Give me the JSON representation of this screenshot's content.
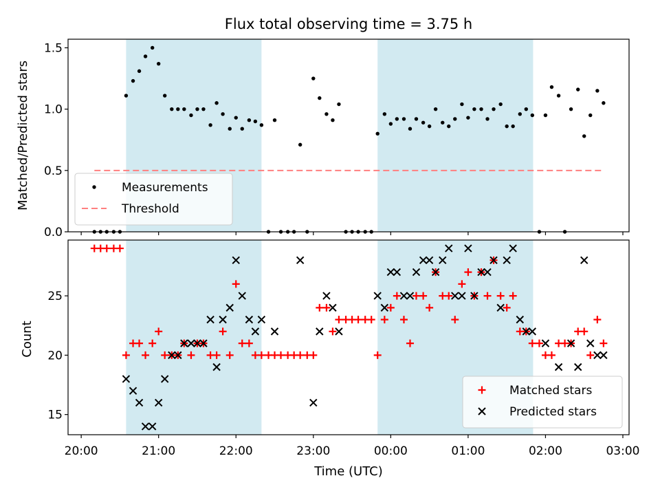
{
  "chart_data": {
    "type": "scatter",
    "title": "Flux total observing time = 3.75 h",
    "xlabel": "Time (UTC)",
    "x_unit": "hours since 20:00 UTC",
    "x_ticks": [
      0,
      1,
      2,
      3,
      4,
      5,
      6,
      7
    ],
    "x_tick_labels": [
      "20:00",
      "21:00",
      "22:00",
      "23:00",
      "00:00",
      "01:00",
      "02:00",
      "03:00"
    ],
    "xlim": [
      -0.17,
      7.08
    ],
    "shaded_spans": [
      [
        0.58,
        2.33
      ],
      [
        3.83,
        5.84
      ]
    ],
    "shade_color": "#add8e6",
    "panels": [
      {
        "ylabel": "Matched/Predicted stars",
        "ylim": [
          0.0,
          1.57
        ],
        "y_ticks": [
          0.0,
          0.5,
          1.0,
          1.5
        ],
        "y_tick_labels": [
          "0.0",
          "0.5",
          "1.0",
          "1.5"
        ],
        "legend_position": "lower-left",
        "series": [
          {
            "name": "Measurements",
            "kind": "dot",
            "color": "#000000",
            "points": [
              [
                0.17,
                0
              ],
              [
                0.25,
                0
              ],
              [
                0.33,
                0
              ],
              [
                0.42,
                0
              ],
              [
                0.5,
                0
              ],
              [
                0.58,
                1.11
              ],
              [
                0.67,
                1.23
              ],
              [
                0.75,
                1.31
              ],
              [
                0.83,
                1.43
              ],
              [
                0.92,
                1.5
              ],
              [
                1.0,
                1.37
              ],
              [
                1.08,
                1.11
              ],
              [
                1.17,
                1.0
              ],
              [
                1.25,
                1.0
              ],
              [
                1.33,
                1.0
              ],
              [
                1.42,
                0.95
              ],
              [
                1.5,
                1.0
              ],
              [
                1.58,
                1.0
              ],
              [
                1.67,
                0.87
              ],
              [
                1.75,
                1.05
              ],
              [
                1.83,
                0.96
              ],
              [
                1.92,
                0.84
              ],
              [
                2.0,
                0.93
              ],
              [
                2.08,
                0.84
              ],
              [
                2.17,
                0.91
              ],
              [
                2.25,
                0.9
              ],
              [
                2.33,
                0.87
              ],
              [
                2.42,
                0
              ],
              [
                2.5,
                0.91
              ],
              [
                2.58,
                0
              ],
              [
                2.67,
                0
              ],
              [
                2.75,
                0
              ],
              [
                2.83,
                0.71
              ],
              [
                2.92,
                0
              ],
              [
                3.0,
                1.25
              ],
              [
                3.08,
                1.09
              ],
              [
                3.17,
                0.96
              ],
              [
                3.25,
                0.91
              ],
              [
                3.33,
                1.04
              ],
              [
                3.42,
                0
              ],
              [
                3.5,
                0
              ],
              [
                3.58,
                0
              ],
              [
                3.67,
                0
              ],
              [
                3.75,
                0
              ],
              [
                3.83,
                0.8
              ],
              [
                3.92,
                0.96
              ],
              [
                4.0,
                0.88
              ],
              [
                4.08,
                0.92
              ],
              [
                4.17,
                0.92
              ],
              [
                4.25,
                0.84
              ],
              [
                4.33,
                0.92
              ],
              [
                4.42,
                0.89
              ],
              [
                4.5,
                0.86
              ],
              [
                4.58,
                1.0
              ],
              [
                4.67,
                0.89
              ],
              [
                4.75,
                0.86
              ],
              [
                4.83,
                0.92
              ],
              [
                4.92,
                1.04
              ],
              [
                5.0,
                0.93
              ],
              [
                5.08,
                1.0
              ],
              [
                5.17,
                1.0
              ],
              [
                5.25,
                0.92
              ],
              [
                5.33,
                1.0
              ],
              [
                5.42,
                1.04
              ],
              [
                5.5,
                0.86
              ],
              [
                5.58,
                0.86
              ],
              [
                5.67,
                0.96
              ],
              [
                5.75,
                1.0
              ],
              [
                5.83,
                0.95
              ],
              [
                5.92,
                0
              ],
              [
                6.0,
                0.95
              ],
              [
                6.08,
                1.18
              ],
              [
                6.17,
                1.11
              ],
              [
                6.25,
                0
              ],
              [
                6.33,
                1.0
              ],
              [
                6.42,
                1.16
              ],
              [
                6.5,
                0.78
              ],
              [
                6.58,
                0.95
              ],
              [
                6.67,
                1.15
              ],
              [
                6.75,
                1.05
              ]
            ]
          },
          {
            "name": "Threshold",
            "kind": "dashed-line",
            "color": "#ff7f7f",
            "points": [
              [
                0.17,
                0.5
              ],
              [
                6.75,
                0.5
              ]
            ]
          }
        ]
      },
      {
        "ylabel": "Count",
        "ylim": [
          13.3,
          29.7
        ],
        "y_ticks": [
          15,
          20,
          25
        ],
        "y_tick_labels": [
          "15",
          "20",
          "25"
        ],
        "legend_position": "lower-right",
        "series": [
          {
            "name": "Matched stars",
            "kind": "plus",
            "color": "#ff0000",
            "points": [
              [
                0.17,
                29
              ],
              [
                0.25,
                29
              ],
              [
                0.33,
                29
              ],
              [
                0.42,
                29
              ],
              [
                0.5,
                29
              ],
              [
                0.58,
                20
              ],
              [
                0.67,
                21
              ],
              [
                0.75,
                21
              ],
              [
                0.83,
                20
              ],
              [
                0.92,
                21
              ],
              [
                1.0,
                22
              ],
              [
                1.08,
                20
              ],
              [
                1.17,
                20
              ],
              [
                1.25,
                20
              ],
              [
                1.33,
                21
              ],
              [
                1.42,
                20
              ],
              [
                1.5,
                21
              ],
              [
                1.58,
                21
              ],
              [
                1.67,
                20
              ],
              [
                1.75,
                20
              ],
              [
                1.83,
                22
              ],
              [
                1.92,
                20
              ],
              [
                2.0,
                26
              ],
              [
                2.08,
                21
              ],
              [
                2.17,
                21
              ],
              [
                2.25,
                20
              ],
              [
                2.33,
                20
              ],
              [
                2.42,
                20
              ],
              [
                2.5,
                20
              ],
              [
                2.58,
                20
              ],
              [
                2.67,
                20
              ],
              [
                2.75,
                20
              ],
              [
                2.83,
                20
              ],
              [
                2.92,
                20
              ],
              [
                3.0,
                20
              ],
              [
                3.08,
                24
              ],
              [
                3.17,
                24
              ],
              [
                3.25,
                22
              ],
              [
                3.33,
                23
              ],
              [
                3.42,
                23
              ],
              [
                3.5,
                23
              ],
              [
                3.58,
                23
              ],
              [
                3.67,
                23
              ],
              [
                3.75,
                23
              ],
              [
                3.83,
                20
              ],
              [
                3.92,
                23
              ],
              [
                4.0,
                24
              ],
              [
                4.08,
                25
              ],
              [
                4.17,
                23
              ],
              [
                4.25,
                21
              ],
              [
                4.33,
                25
              ],
              [
                4.42,
                25
              ],
              [
                4.5,
                24
              ],
              [
                4.58,
                27
              ],
              [
                4.67,
                25
              ],
              [
                4.75,
                25
              ],
              [
                4.83,
                23
              ],
              [
                4.92,
                26
              ],
              [
                5.0,
                27
              ],
              [
                5.08,
                25
              ],
              [
                5.17,
                27
              ],
              [
                5.25,
                25
              ],
              [
                5.33,
                28
              ],
              [
                5.42,
                25
              ],
              [
                5.5,
                24
              ],
              [
                5.58,
                25
              ],
              [
                5.67,
                22
              ],
              [
                5.75,
                22
              ],
              [
                5.83,
                21
              ],
              [
                5.92,
                21
              ],
              [
                6.0,
                20
              ],
              [
                6.08,
                20
              ],
              [
                6.17,
                21
              ],
              [
                6.25,
                21
              ],
              [
                6.33,
                21
              ],
              [
                6.42,
                22
              ],
              [
                6.5,
                22
              ],
              [
                6.58,
                20
              ],
              [
                6.67,
                23
              ],
              [
                6.75,
                21
              ]
            ]
          },
          {
            "name": "Predicted stars",
            "kind": "x",
            "color": "#000000",
            "points": [
              [
                0.58,
                18
              ],
              [
                0.67,
                17
              ],
              [
                0.75,
                16
              ],
              [
                0.83,
                14
              ],
              [
                0.92,
                14
              ],
              [
                1.0,
                16
              ],
              [
                1.08,
                18
              ],
              [
                1.17,
                20
              ],
              [
                1.25,
                20
              ],
              [
                1.33,
                21
              ],
              [
                1.42,
                21
              ],
              [
                1.5,
                21
              ],
              [
                1.58,
                21
              ],
              [
                1.67,
                23
              ],
              [
                1.75,
                19
              ],
              [
                1.83,
                23
              ],
              [
                1.92,
                24
              ],
              [
                2.0,
                28
              ],
              [
                2.08,
                25
              ],
              [
                2.17,
                23
              ],
              [
                2.25,
                22
              ],
              [
                2.33,
                23
              ],
              [
                2.5,
                22
              ],
              [
                2.83,
                28
              ],
              [
                3.0,
                16
              ],
              [
                3.08,
                22
              ],
              [
                3.17,
                25
              ],
              [
                3.25,
                24
              ],
              [
                3.33,
                22
              ],
              [
                3.83,
                25
              ],
              [
                3.92,
                24
              ],
              [
                4.0,
                27
              ],
              [
                4.08,
                27
              ],
              [
                4.17,
                25
              ],
              [
                4.25,
                25
              ],
              [
                4.33,
                27
              ],
              [
                4.42,
                28
              ],
              [
                4.5,
                28
              ],
              [
                4.58,
                27
              ],
              [
                4.67,
                28
              ],
              [
                4.75,
                29
              ],
              [
                4.83,
                25
              ],
              [
                4.92,
                25
              ],
              [
                5.0,
                29
              ],
              [
                5.08,
                25
              ],
              [
                5.17,
                27
              ],
              [
                5.25,
                27
              ],
              [
                5.33,
                28
              ],
              [
                5.42,
                24
              ],
              [
                5.5,
                28
              ],
              [
                5.58,
                29
              ],
              [
                5.67,
                23
              ],
              [
                5.75,
                22
              ],
              [
                5.83,
                22
              ],
              [
                6.0,
                21
              ],
              [
                6.17,
                19
              ],
              [
                6.33,
                21
              ],
              [
                6.42,
                19
              ],
              [
                6.5,
                28
              ],
              [
                6.58,
                21
              ],
              [
                6.67,
                20
              ],
              [
                6.75,
                20
              ]
            ]
          }
        ]
      }
    ]
  }
}
